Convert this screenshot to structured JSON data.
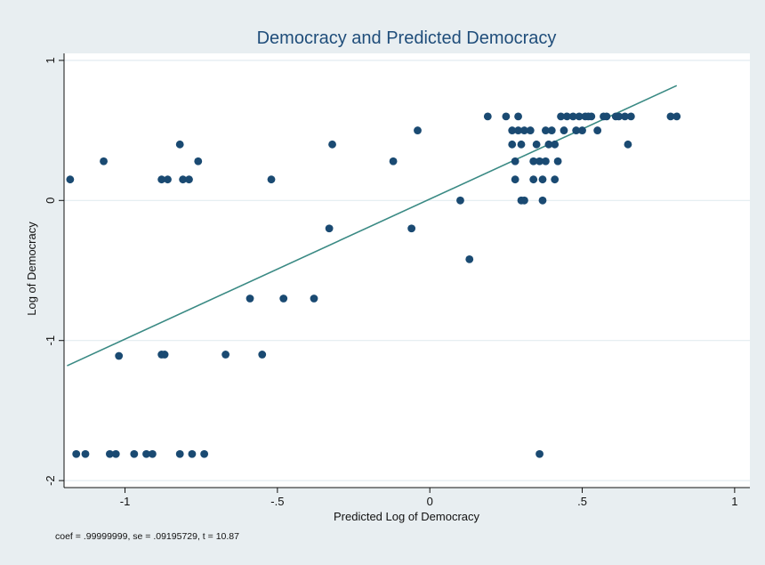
{
  "chart_data": {
    "type": "scatter",
    "title": "Democracy and Predicted Democracy",
    "xlabel": "Predicted Log of Democracy",
    "ylabel": "Log of Democracy",
    "xlim": [
      -1.2,
      1.05
    ],
    "ylim": [
      -2.05,
      1.05
    ],
    "x_ticks": [
      {
        "value": -1,
        "label": "-1"
      },
      {
        "value": -0.5,
        "label": "-.5"
      },
      {
        "value": 0,
        "label": "0"
      },
      {
        "value": 0.5,
        "label": ".5"
      },
      {
        "value": 1,
        "label": "1"
      }
    ],
    "y_ticks": [
      {
        "value": 1,
        "label": "1"
      },
      {
        "value": 0,
        "label": "0"
      },
      {
        "value": -1,
        "label": "-1"
      },
      {
        "value": -2,
        "label": "-2"
      }
    ],
    "grid": "horizontal",
    "legend": "none",
    "note": "coef = .99999999, se = .09195729, t = 10.87",
    "colors": {
      "points": "#1a4a72",
      "fit_line": "#3a8a84",
      "plot_background": "#ffffff",
      "outer_background": "#e8eef1",
      "grid": "#e3ecf1",
      "title": "#1f4d7a"
    },
    "points": [
      [
        -1.18,
        0.15
      ],
      [
        -1.16,
        -1.81
      ],
      [
        -1.13,
        -1.81
      ],
      [
        -1.07,
        0.28
      ],
      [
        -1.05,
        -1.81
      ],
      [
        -1.03,
        -1.81
      ],
      [
        -1.02,
        -1.11
      ],
      [
        -0.97,
        -1.81
      ],
      [
        -0.93,
        -1.81
      ],
      [
        -0.91,
        -1.81
      ],
      [
        -0.88,
        0.15
      ],
      [
        -0.86,
        0.15
      ],
      [
        -0.82,
        0.4
      ],
      [
        -0.81,
        0.15
      ],
      [
        -0.79,
        0.15
      ],
      [
        -0.88,
        -1.1
      ],
      [
        -0.87,
        -1.1
      ],
      [
        -0.82,
        -1.81
      ],
      [
        -0.78,
        -1.81
      ],
      [
        -0.76,
        0.28
      ],
      [
        -0.74,
        -1.81
      ],
      [
        -0.67,
        -1.1
      ],
      [
        -0.59,
        -0.7
      ],
      [
        -0.55,
        -1.1
      ],
      [
        -0.52,
        0.15
      ],
      [
        -0.48,
        -0.7
      ],
      [
        -0.38,
        -0.7
      ],
      [
        -0.33,
        -0.2
      ],
      [
        -0.32,
        0.4
      ],
      [
        -0.12,
        0.28
      ],
      [
        -0.06,
        -0.2
      ],
      [
        -0.04,
        0.5
      ],
      [
        0.1,
        0.0
      ],
      [
        0.13,
        -0.42
      ],
      [
        0.19,
        0.6
      ],
      [
        0.25,
        0.6
      ],
      [
        0.27,
        0.5
      ],
      [
        0.27,
        0.4
      ],
      [
        0.28,
        0.28
      ],
      [
        0.28,
        0.15
      ],
      [
        0.29,
        0.5
      ],
      [
        0.29,
        0.6
      ],
      [
        0.3,
        0.4
      ],
      [
        0.31,
        0.5
      ],
      [
        0.3,
        0.0
      ],
      [
        0.31,
        0.0
      ],
      [
        0.33,
        0.5
      ],
      [
        0.34,
        0.28
      ],
      [
        0.34,
        0.15
      ],
      [
        0.35,
        0.4
      ],
      [
        0.36,
        0.28
      ],
      [
        0.37,
        0.0
      ],
      [
        0.37,
        0.15
      ],
      [
        0.38,
        0.5
      ],
      [
        0.38,
        0.28
      ],
      [
        0.39,
        0.4
      ],
      [
        0.4,
        0.5
      ],
      [
        0.41,
        0.4
      ],
      [
        0.41,
        0.15
      ],
      [
        0.42,
        0.28
      ],
      [
        0.43,
        0.6
      ],
      [
        0.44,
        0.5
      ],
      [
        0.45,
        0.6
      ],
      [
        0.47,
        0.6
      ],
      [
        0.48,
        0.5
      ],
      [
        0.49,
        0.6
      ],
      [
        0.5,
        0.5
      ],
      [
        0.51,
        0.6
      ],
      [
        0.52,
        0.6
      ],
      [
        0.53,
        0.6
      ],
      [
        0.55,
        0.5
      ],
      [
        0.57,
        0.6
      ],
      [
        0.58,
        0.6
      ],
      [
        0.61,
        0.6
      ],
      [
        0.62,
        0.6
      ],
      [
        0.64,
        0.6
      ],
      [
        0.65,
        0.4
      ],
      [
        0.66,
        0.6
      ],
      [
        0.79,
        0.6
      ],
      [
        0.81,
        0.6
      ],
      [
        0.36,
        -1.81
      ]
    ],
    "fit_line": {
      "x": [
        -1.19,
        0.81
      ],
      "y": [
        -1.18,
        0.82
      ]
    }
  }
}
